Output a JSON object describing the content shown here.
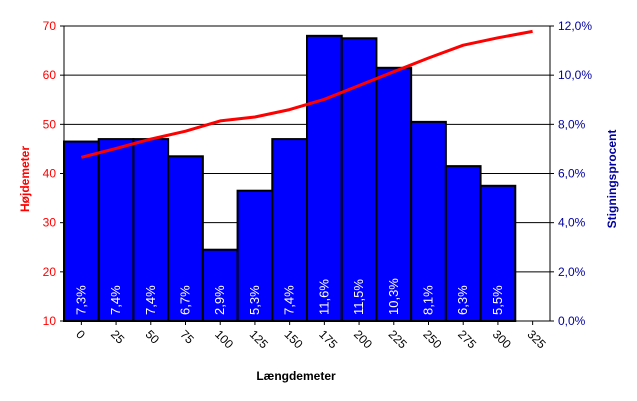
{
  "chart_data": {
    "type": "bar",
    "categories": [
      "0",
      "25",
      "50",
      "75",
      "100",
      "125",
      "150",
      "175",
      "200",
      "225",
      "250",
      "275",
      "300",
      "325"
    ],
    "bars": {
      "axis": "right",
      "values": [
        7.3,
        7.4,
        7.4,
        6.7,
        2.9,
        5.3,
        7.4,
        11.6,
        11.5,
        10.3,
        8.1,
        6.3,
        5.5
      ],
      "labels": [
        "7,3%",
        "7,4%",
        "7,4%",
        "6,7%",
        "2,9%",
        "5,3%",
        "7,4%",
        "11,6%",
        "11,5%",
        "10,3%",
        "8,1%",
        "6,3%",
        "5,5%"
      ],
      "color": "#0000ff",
      "edge_color": "#000000"
    },
    "line": {
      "axis": "left",
      "x": [
        0,
        25,
        50,
        75,
        100,
        125,
        150,
        175,
        200,
        225,
        250,
        275,
        300,
        325
      ],
      "values": [
        43.3,
        45.1,
        47.0,
        48.6,
        50.7,
        51.5,
        53.0,
        55.1,
        57.9,
        60.7,
        63.5,
        66.1,
        67.6,
        68.9
      ],
      "color": "#ff0000"
    },
    "xlabel": "Længdemeter",
    "ylabel_left": "Højdemeter",
    "ylabel_right": "Stigningsprocent",
    "ylim_left": [
      10,
      70
    ],
    "ylim_right": [
      0,
      12
    ],
    "yticks_left": [
      "10",
      "20",
      "30",
      "40",
      "50",
      "60",
      "70"
    ],
    "yticks_right": [
      "0,0%",
      "2,0%",
      "4,0%",
      "6,0%",
      "8,0%",
      "10,0%",
      "12,0%"
    ],
    "left_axis_color": "#ff0000",
    "right_axis_color": "#0000a0",
    "grid": true
  }
}
